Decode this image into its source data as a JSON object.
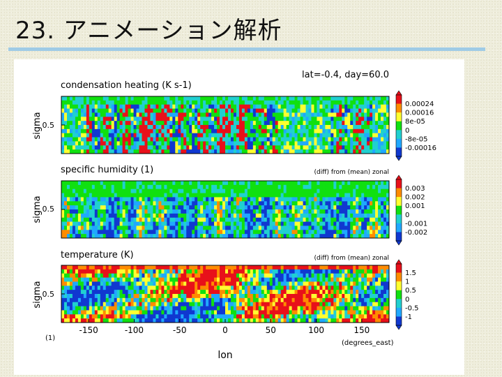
{
  "slide": {
    "title": "23. アニメーション解析"
  },
  "figure": {
    "header": "lat=-0.4, day=60.0",
    "x_axis": {
      "label": "lon",
      "unit": "(degrees_east)",
      "ticks": [
        "-150",
        "-100",
        "-50",
        "0",
        "50",
        "100",
        "150"
      ],
      "tick_values": [
        -150,
        -100,
        -50,
        0,
        50,
        100,
        150
      ],
      "range": [
        -180,
        180
      ]
    },
    "bottom_left_note": "(1)",
    "panels": [
      {
        "title": "condensation heating (K s-1)",
        "note": "",
        "ylabel": "sigma",
        "ytick": "0.5",
        "colorbar": [
          "0.00024",
          "0.00016",
          "8e-05",
          "0",
          "-8e-05",
          "-0.00016"
        ]
      },
      {
        "title": "specific humidity (1)",
        "note": "(diff) from (mean) zonal",
        "ylabel": "sigma",
        "ytick": "0.5",
        "colorbar": [
          "0.003",
          "0.002",
          "0.001",
          "0",
          "-0.001",
          "-0.002"
        ]
      },
      {
        "title": "temperature (K)",
        "note": "(diff) from (mean) zonal",
        "ylabel": "sigma",
        "ytick": "0.5",
        "colorbar": [
          "1.5",
          "1",
          "0.5",
          "0",
          "-0.5",
          "-1"
        ]
      }
    ],
    "colors": {
      "red": "#e8101a",
      "orange": "#ff8c00",
      "yellow": "#ffff30",
      "green": "#10e010",
      "cyan": "#20d0d0",
      "lightblue": "#20a8ff",
      "blue": "#1038d0"
    }
  }
}
